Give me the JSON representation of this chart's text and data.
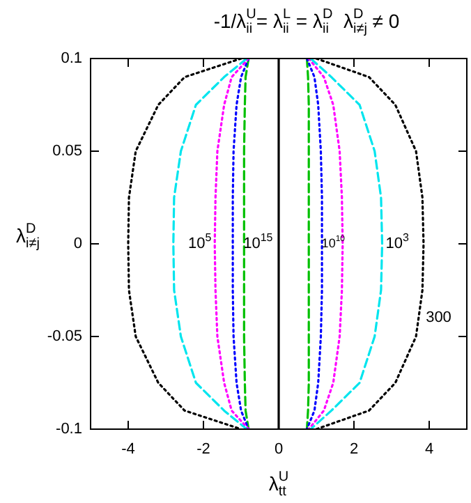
{
  "chart_data": {
    "type": "line",
    "title": "-1/λ$^{U}$$_{ii}$= λ$^{L}$$_{ii}$ = λ$^{D}$$_{ii}$  λ$^{D}$$_{i≠j}$ ≠ 0",
    "xlabel": "λ$^{U}$$_{tt}$",
    "ylabel": "λ$^{D}$$_{i≠j}$",
    "xlim": [
      -5,
      5
    ],
    "xticks": [
      -4,
      -2,
      0,
      2,
      4
    ],
    "ylim": [
      -0.1,
      0.1
    ],
    "yticks": [
      -0.1,
      -0.05,
      0,
      0.05,
      0.1
    ],
    "grid": false,
    "series": [
      {
        "color": "#000000",
        "line_style": "dotted",
        "x": [
          -1.0,
          -2.5,
          -3.2,
          -3.8,
          -3.98,
          -4.0,
          -3.98,
          -3.8,
          -3.2,
          -2.5,
          -1.0
        ],
        "values": [
          0.1,
          0.09,
          0.075,
          0.05,
          0.025,
          0,
          -0.025,
          -0.05,
          -0.075,
          -0.09,
          -0.1
        ]
      },
      {
        "color": "#000000",
        "line_style": "dotted",
        "x": [
          1.0,
          2.4,
          3.1,
          3.65,
          3.82,
          3.85,
          3.82,
          3.65,
          3.1,
          2.4,
          1.0
        ],
        "values": [
          0.1,
          0.09,
          0.075,
          0.05,
          0.025,
          0,
          -0.025,
          -0.05,
          -0.075,
          -0.09,
          -0.1
        ]
      },
      {
        "color": "#00e5ee",
        "line_style": "dashed",
        "x": [
          -0.85,
          -1.45,
          -2.2,
          -2.6,
          -2.78,
          -2.8,
          -2.78,
          -2.6,
          -2.2,
          -1.45,
          -0.85
        ],
        "values": [
          0.1,
          0.09,
          0.075,
          0.05,
          0.025,
          0,
          -0.025,
          -0.05,
          -0.075,
          -0.09,
          -0.1
        ]
      },
      {
        "color": "#00e5ee",
        "line_style": "dashed",
        "x": [
          0.85,
          1.4,
          2.15,
          2.55,
          2.72,
          2.75,
          2.72,
          2.55,
          2.15,
          1.4,
          0.85
        ],
        "values": [
          0.1,
          0.09,
          0.075,
          0.05,
          0.025,
          0,
          -0.025,
          -0.05,
          -0.075,
          -0.09,
          -0.1
        ]
      },
      {
        "color": "#ff00ff",
        "line_style": "dotted",
        "x": [
          -0.8,
          -1.25,
          -1.45,
          -1.63,
          -1.68,
          -1.7,
          -1.68,
          -1.63,
          -1.45,
          -1.25,
          -0.8
        ],
        "values": [
          0.1,
          0.09,
          0.075,
          0.05,
          0.025,
          0,
          -0.025,
          -0.05,
          -0.075,
          -0.09,
          -0.1
        ]
      },
      {
        "color": "#ff00ff",
        "line_style": "dotted",
        "x": [
          0.8,
          1.2,
          1.45,
          1.62,
          1.68,
          1.7,
          1.68,
          1.62,
          1.45,
          1.2,
          0.8
        ],
        "values": [
          0.1,
          0.09,
          0.075,
          0.05,
          0.025,
          0,
          -0.025,
          -0.05,
          -0.075,
          -0.09,
          -0.1
        ]
      },
      {
        "color": "#0000ff",
        "line_style": "dotted",
        "x": [
          -0.8,
          -1.0,
          -1.12,
          -1.2,
          -1.22,
          -1.22,
          -1.22,
          -1.2,
          -1.12,
          -1.0,
          -0.8
        ],
        "values": [
          0.1,
          0.09,
          0.075,
          0.05,
          0.025,
          0,
          -0.025,
          -0.05,
          -0.075,
          -0.09,
          -0.1
        ]
      },
      {
        "color": "#0000ff",
        "line_style": "dotted",
        "x": [
          0.75,
          0.95,
          1.05,
          1.12,
          1.15,
          1.15,
          1.15,
          1.12,
          1.05,
          0.95,
          0.75
        ],
        "values": [
          0.1,
          0.09,
          0.075,
          0.05,
          0.025,
          0,
          -0.025,
          -0.05,
          -0.075,
          -0.09,
          -0.1
        ]
      },
      {
        "color": "#00c000",
        "line_style": "dashed",
        "x": [
          -0.8,
          -0.88,
          -0.9,
          -0.92,
          -0.92,
          -0.92,
          -0.92,
          -0.92,
          -0.9,
          -0.88,
          -0.8
        ],
        "values": [
          0.1,
          0.09,
          0.075,
          0.05,
          0.025,
          0,
          -0.025,
          -0.05,
          -0.075,
          -0.09,
          -0.1
        ]
      },
      {
        "color": "#00c000",
        "line_style": "dashed",
        "x": [
          0.75,
          0.78,
          0.8,
          0.8,
          0.8,
          0.8,
          0.8,
          0.8,
          0.8,
          0.78,
          0.75
        ],
        "values": [
          0.1,
          0.09,
          0.075,
          0.05,
          0.025,
          0,
          -0.025,
          -0.05,
          -0.075,
          -0.09,
          -0.1
        ]
      },
      {
        "color": "#000000",
        "line_style": "solid",
        "x": [
          0,
          0
        ],
        "values": [
          0.1,
          -0.1
        ]
      }
    ],
    "annotations": [
      "10$^{5}$",
      "10$^{15}$",
      "10$^{10}$",
      "10$^{3}$",
      "300"
    ]
  }
}
